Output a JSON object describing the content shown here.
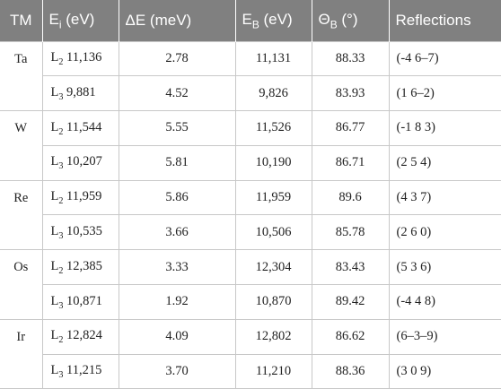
{
  "table": {
    "header": [
      {
        "main": "TM"
      },
      {
        "main": "E",
        "sub": "i",
        "rest": " (eV)"
      },
      {
        "main": "ΔE (meV)"
      },
      {
        "main": "E",
        "sub": "B",
        "rest": " (eV)"
      },
      {
        "main": "Θ",
        "sub": "B",
        "rest": " (°)"
      },
      {
        "main": "Reflections"
      }
    ],
    "groups": [
      {
        "tm": "Ta",
        "rows": [
          {
            "line": "L",
            "sub": "2",
            "energy": "11,136",
            "de": "2.78",
            "eb": "11,131",
            "theta": "88.33",
            "refl": "(-4 6–7)"
          },
          {
            "line": "L",
            "sub": "3",
            "energy": "9,881",
            "de": "4.52",
            "eb": "9,826",
            "theta": "83.93",
            "refl": "(1 6–2)"
          }
        ]
      },
      {
        "tm": "W",
        "rows": [
          {
            "line": "L",
            "sub": "2",
            "energy": "11,544",
            "de": "5.55",
            "eb": "11,526",
            "theta": "86.77",
            "refl": "(-1 8 3)"
          },
          {
            "line": "L",
            "sub": "3",
            "energy": "10,207",
            "de": "5.81",
            "eb": "10,190",
            "theta": "86.71",
            "refl": "(2 5 4)"
          }
        ]
      },
      {
        "tm": "Re",
        "rows": [
          {
            "line": "L",
            "sub": "2",
            "energy": "11,959",
            "de": "5.86",
            "eb": "11,959",
            "theta": "89.6",
            "refl": "(4 3 7)"
          },
          {
            "line": "L",
            "sub": "3",
            "energy": "10,535",
            "de": "3.66",
            "eb": "10,506",
            "theta": "85.78",
            "refl": "(2 6 0)"
          }
        ]
      },
      {
        "tm": "Os",
        "rows": [
          {
            "line": "L",
            "sub": "2",
            "energy": "12,385",
            "de": "3.33",
            "eb": "12,304",
            "theta": "83.43",
            "refl": "(5 3 6)"
          },
          {
            "line": "L",
            "sub": "3",
            "energy": "10,871",
            "de": "1.92",
            "eb": "10,870",
            "theta": "89.42",
            "refl": "(-4 4 8)"
          }
        ]
      },
      {
        "tm": "Ir",
        "rows": [
          {
            "line": "L",
            "sub": "2",
            "energy": "12,824",
            "de": "4.09",
            "eb": "12,802",
            "theta": "86.62",
            "refl": "(6–3–9)"
          },
          {
            "line": "L",
            "sub": "3",
            "energy": "11,215",
            "de": "3.70",
            "eb": "11,210",
            "theta": "88.36",
            "refl": "(3 0 9)"
          }
        ]
      }
    ]
  }
}
